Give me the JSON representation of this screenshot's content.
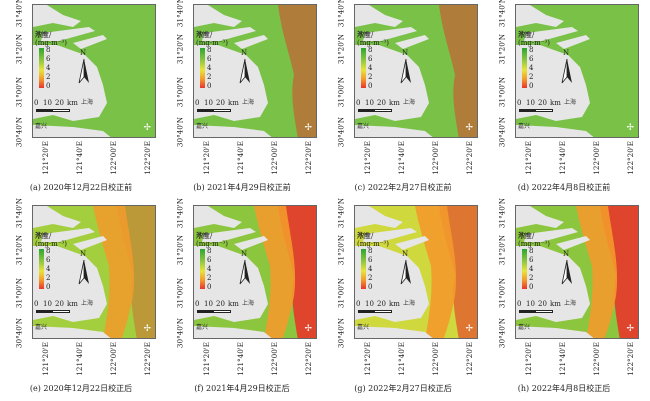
{
  "legend": {
    "title_line1": "浓度/",
    "title_line2": "(mg·m⁻³)",
    "ticks": [
      "8",
      "6",
      "4",
      "2",
      "0"
    ],
    "colors": [
      "#2fa52f",
      "#8cc63f",
      "#e8e43a",
      "#f39a2b",
      "#e8352b"
    ]
  },
  "north_arrow": "N",
  "scale_bar": {
    "labels": [
      "0",
      "10",
      "20",
      "km"
    ]
  },
  "place_names": {
    "suzhou": "苏州",
    "shanghai": "上海",
    "jiaxing": "嘉兴"
  },
  "axes": {
    "y_labels": [
      "31°40'N",
      "31°20'N",
      "31°00'N",
      "30°40'N"
    ],
    "x_labels": [
      "121°20'E",
      "121°40'E",
      "122°00'E",
      "122°20'E"
    ]
  },
  "panels": [
    {
      "caption": "(a) 2020年12月22日校正前",
      "tone": "green"
    },
    {
      "caption": "(b) 2021年4月29日校正前",
      "tone": "green"
    },
    {
      "caption": "(c) 2022年2月27日校正前",
      "tone": "green"
    },
    {
      "caption": "(d) 2022年4月8日校正前",
      "tone": "green"
    },
    {
      "caption": "(e) 2020年12月22日校正后",
      "tone": "orange"
    },
    {
      "caption": "(f) 2021年4月29日校正后",
      "tone": "red"
    },
    {
      "caption": "(g) 2022年2月27日校正后",
      "tone": "yellow"
    },
    {
      "caption": "(h) 2022年4月8日校正后",
      "tone": "red"
    }
  ]
}
